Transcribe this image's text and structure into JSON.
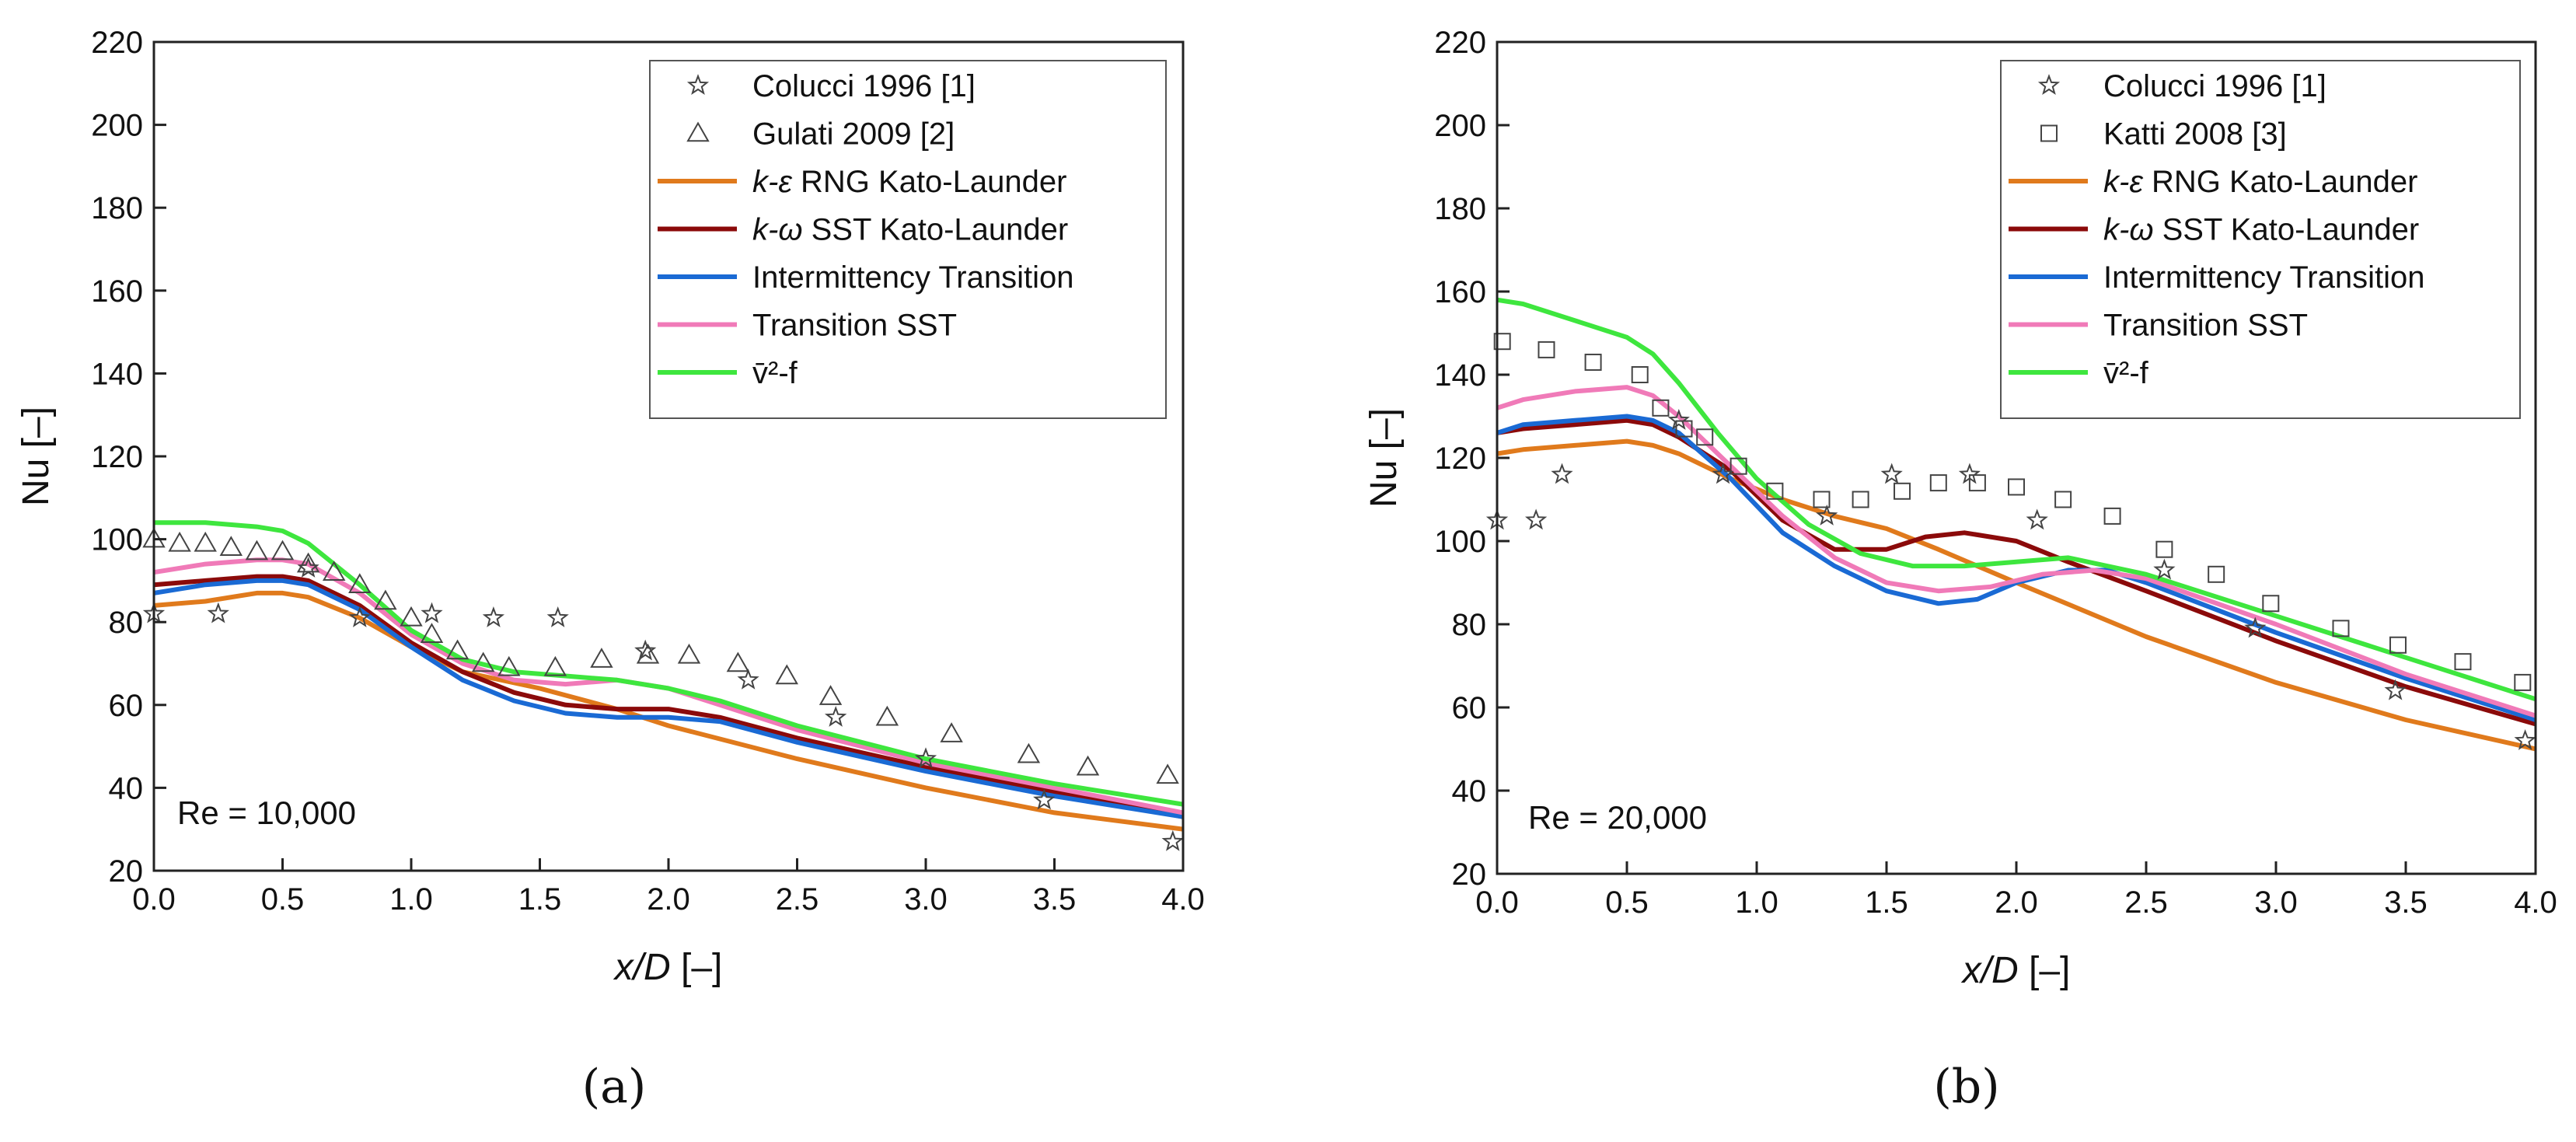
{
  "chart_data": [
    {
      "type": "line",
      "panel_label": "(a)",
      "annotation": "Re = 10,000",
      "xlabel_italic": "x/D",
      "xlabel_unit": " [–]",
      "ylabel": "Nu [–]",
      "xlim": [
        0,
        4
      ],
      "ylim": [
        20,
        220
      ],
      "xticks": [
        "0.0",
        "0.5",
        "1.0",
        "1.5",
        "2.0",
        "2.5",
        "3.0",
        "3.5",
        "4.0"
      ],
      "yticks": [
        "20",
        "40",
        "60",
        "80",
        "100",
        "120",
        "140",
        "160",
        "180",
        "200",
        "220"
      ],
      "legend": [
        {
          "key": "colucci",
          "label": "Colucci 1996 [1]"
        },
        {
          "key": "gulati",
          "label": "Gulati 2009 [2]"
        },
        {
          "key": "rng",
          "prefix": "k",
          "sym": "-ε",
          "label": " RNG Kato-Launder"
        },
        {
          "key": "sst",
          "prefix": "k",
          "sym": "-ω",
          "label": " SST Kato-Launder"
        },
        {
          "key": "int",
          "label": "Intermittency Transition"
        },
        {
          "key": "tsst",
          "label": "Transition SST"
        },
        {
          "key": "v2f",
          "label": "v̄²-f"
        }
      ],
      "scatter": [
        {
          "key": "colucci",
          "marker": "star",
          "name": "Colucci 1996 [1]",
          "x": [
            0.0,
            0.25,
            0.6,
            0.8,
            1.08,
            1.32,
            1.57,
            1.91,
            2.31,
            2.65,
            3.0,
            3.46,
            3.96
          ],
          "y": [
            82,
            82,
            93,
            81,
            82,
            81,
            81,
            73,
            66,
            57,
            47,
            37,
            27
          ]
        },
        {
          "key": "gulati",
          "marker": "triangle",
          "name": "Gulati 2009 [2]",
          "x": [
            0.0,
            0.1,
            0.2,
            0.3,
            0.4,
            0.5,
            0.6,
            0.7,
            0.8,
            0.9,
            1.0,
            1.08,
            1.18,
            1.28,
            1.38,
            1.56,
            1.74,
            1.92,
            2.08,
            2.27,
            2.46,
            2.63,
            2.85,
            3.1,
            3.4,
            3.63,
            3.94
          ],
          "y": [
            100,
            99,
            99,
            98,
            97,
            97,
            94,
            92,
            89,
            85,
            81,
            77,
            73,
            70,
            69,
            69,
            71,
            72,
            72,
            70,
            67,
            62,
            57,
            53,
            48,
            45,
            43
          ]
        }
      ],
      "series": [
        {
          "key": "rng",
          "name": "k-ε RNG Kato-Launder",
          "color": "#e07a1c",
          "x": [
            0.0,
            0.2,
            0.4,
            0.5,
            0.6,
            0.8,
            1.0,
            1.2,
            1.5,
            1.8,
            2.0,
            2.5,
            3.0,
            3.5,
            4.0
          ],
          "y": [
            84,
            85,
            87,
            87,
            86,
            81,
            74,
            68,
            64,
            59,
            55,
            47,
            40,
            34,
            30
          ]
        },
        {
          "key": "sst",
          "name": "k-ω SST Kato-Launder",
          "color": "#8b0a0a",
          "x": [
            0.0,
            0.2,
            0.4,
            0.5,
            0.6,
            0.8,
            1.0,
            1.2,
            1.4,
            1.6,
            1.8,
            2.0,
            2.2,
            2.5,
            3.0,
            3.5,
            4.0
          ],
          "y": [
            89,
            90,
            91,
            91,
            90,
            84,
            75,
            68,
            63,
            60,
            59,
            59,
            57,
            52,
            45,
            39,
            33
          ]
        },
        {
          "key": "int",
          "name": "Intermittency Transition",
          "color": "#1a6ad4",
          "x": [
            0.0,
            0.2,
            0.4,
            0.5,
            0.6,
            0.8,
            1.0,
            1.2,
            1.4,
            1.6,
            1.8,
            2.0,
            2.2,
            2.5,
            3.0,
            3.5,
            4.0
          ],
          "y": [
            87,
            89,
            90,
            90,
            89,
            83,
            74,
            66,
            61,
            58,
            57,
            57,
            56,
            51,
            44,
            38,
            33
          ]
        },
        {
          "key": "tsst",
          "name": "Transition SST",
          "color": "#f07ab8",
          "x": [
            0.0,
            0.2,
            0.4,
            0.5,
            0.6,
            0.8,
            1.0,
            1.2,
            1.4,
            1.6,
            1.8,
            2.0,
            2.2,
            2.5,
            3.0,
            3.5,
            4.0
          ],
          "y": [
            92,
            94,
            95,
            95,
            94,
            87,
            77,
            70,
            66,
            65,
            66,
            64,
            60,
            54,
            46,
            40,
            34
          ]
        },
        {
          "key": "v2f",
          "name": "v̄²-f",
          "color": "#3ee63e",
          "x": [
            0.0,
            0.2,
            0.4,
            0.5,
            0.6,
            0.8,
            1.0,
            1.2,
            1.4,
            1.6,
            1.8,
            2.0,
            2.2,
            2.5,
            3.0,
            3.5,
            4.0
          ],
          "y": [
            104,
            104,
            103,
            102,
            99,
            89,
            78,
            71,
            68,
            67,
            66,
            64,
            61,
            55,
            47,
            41,
            36
          ]
        }
      ]
    },
    {
      "type": "line",
      "panel_label": "(b)",
      "annotation": "Re = 20,000",
      "xlabel_italic": "x/D",
      "xlabel_unit": " [–]",
      "ylabel": "Nu [–]",
      "xlim": [
        0,
        4
      ],
      "ylim": [
        20,
        220
      ],
      "xticks": [
        "0.0",
        "0.5",
        "1.0",
        "1.5",
        "2.0",
        "2.5",
        "3.0",
        "3.5",
        "4.0"
      ],
      "yticks": [
        "20",
        "40",
        "60",
        "80",
        "100",
        "120",
        "140",
        "160",
        "180",
        "200",
        "220"
      ],
      "legend": [
        {
          "key": "colucci",
          "label": "Colucci 1996 [1]"
        },
        {
          "key": "katti",
          "label": "Katti 2008 [3]"
        },
        {
          "key": "rng",
          "prefix": "k",
          "sym": "-ε",
          "label": " RNG Kato-Launder"
        },
        {
          "key": "sst",
          "prefix": "k",
          "sym": "-ω",
          "label": " SST Kato-Launder"
        },
        {
          "key": "int",
          "label": "Intermittency Transition"
        },
        {
          "key": "tsst",
          "label": "Transition SST"
        },
        {
          "key": "v2f",
          "label": "v̄²-f"
        }
      ],
      "scatter": [
        {
          "key": "colucci",
          "marker": "star",
          "name": "Colucci 1996 [1]",
          "x": [
            0.0,
            0.15,
            0.25,
            0.7,
            0.87,
            1.27,
            1.52,
            1.82,
            2.08,
            2.57,
            2.92,
            3.46,
            3.96
          ],
          "y": [
            105,
            105,
            116,
            129,
            116,
            106,
            116,
            116,
            105,
            93,
            79,
            64,
            52
          ]
        },
        {
          "key": "katti",
          "marker": "square",
          "name": "Katti 2008 [3]",
          "x": [
            0.02,
            0.19,
            0.37,
            0.55,
            0.63,
            0.72,
            0.8,
            0.93,
            1.07,
            1.25,
            1.4,
            1.56,
            1.7,
            1.85,
            2.0,
            2.18,
            2.37,
            2.57,
            2.77,
            2.98,
            3.25,
            3.47,
            3.72,
            3.95
          ],
          "y": [
            148,
            146,
            143,
            140,
            132,
            127,
            125,
            118,
            112,
            110,
            110,
            112,
            114,
            114,
            113,
            110,
            106,
            98,
            92,
            85,
            79,
            75,
            71,
            66
          ]
        }
      ],
      "series": [
        {
          "key": "rng",
          "name": "k-ε RNG Kato-Launder",
          "color": "#e07a1c",
          "x": [
            0.0,
            0.1,
            0.3,
            0.5,
            0.6,
            0.7,
            0.9,
            1.1,
            1.3,
            1.5,
            1.7,
            2.0,
            2.5,
            3.0,
            3.5,
            4.0
          ],
          "y": [
            121,
            122,
            123,
            124,
            123,
            121,
            115,
            110,
            106,
            103,
            98,
            90,
            77,
            66,
            57,
            50
          ]
        },
        {
          "key": "sst",
          "name": "k-ω SST Kato-Launder",
          "color": "#8b0a0a",
          "x": [
            0.0,
            0.1,
            0.3,
            0.5,
            0.6,
            0.7,
            0.9,
            1.1,
            1.3,
            1.5,
            1.65,
            1.8,
            2.0,
            2.2,
            2.5,
            3.0,
            3.5,
            4.0
          ],
          "y": [
            126,
            127,
            128,
            129,
            128,
            125,
            117,
            105,
            98,
            98,
            101,
            102,
            100,
            95,
            88,
            76,
            65,
            56
          ]
        },
        {
          "key": "int",
          "name": "Intermittency Transition",
          "color": "#1a6ad4",
          "x": [
            0.0,
            0.1,
            0.3,
            0.5,
            0.6,
            0.7,
            0.9,
            1.1,
            1.3,
            1.5,
            1.7,
            1.85,
            2.0,
            2.2,
            2.35,
            2.5,
            3.0,
            3.5,
            4.0
          ],
          "y": [
            126,
            128,
            129,
            130,
            129,
            126,
            115,
            102,
            94,
            88,
            85,
            86,
            90,
            93,
            93,
            90,
            78,
            67,
            57
          ]
        },
        {
          "key": "tsst",
          "name": "Transition SST",
          "color": "#f07ab8",
          "x": [
            0.0,
            0.1,
            0.3,
            0.5,
            0.6,
            0.7,
            0.9,
            1.1,
            1.3,
            1.5,
            1.7,
            1.9,
            2.1,
            2.3,
            2.5,
            3.0,
            3.5,
            4.0
          ],
          "y": [
            132,
            134,
            136,
            137,
            135,
            130,
            118,
            106,
            96,
            90,
            88,
            89,
            92,
            93,
            91,
            80,
            68,
            58
          ]
        },
        {
          "key": "v2f",
          "name": "v̄²-f",
          "color": "#3ee63e",
          "x": [
            0.0,
            0.1,
            0.3,
            0.5,
            0.6,
            0.7,
            0.85,
            1.0,
            1.2,
            1.4,
            1.6,
            1.8,
            2.0,
            2.2,
            2.5,
            3.0,
            3.5,
            4.0
          ],
          "y": [
            158,
            157,
            153,
            149,
            145,
            138,
            126,
            115,
            104,
            97,
            94,
            94,
            95,
            96,
            92,
            82,
            72,
            62
          ]
        }
      ]
    }
  ]
}
